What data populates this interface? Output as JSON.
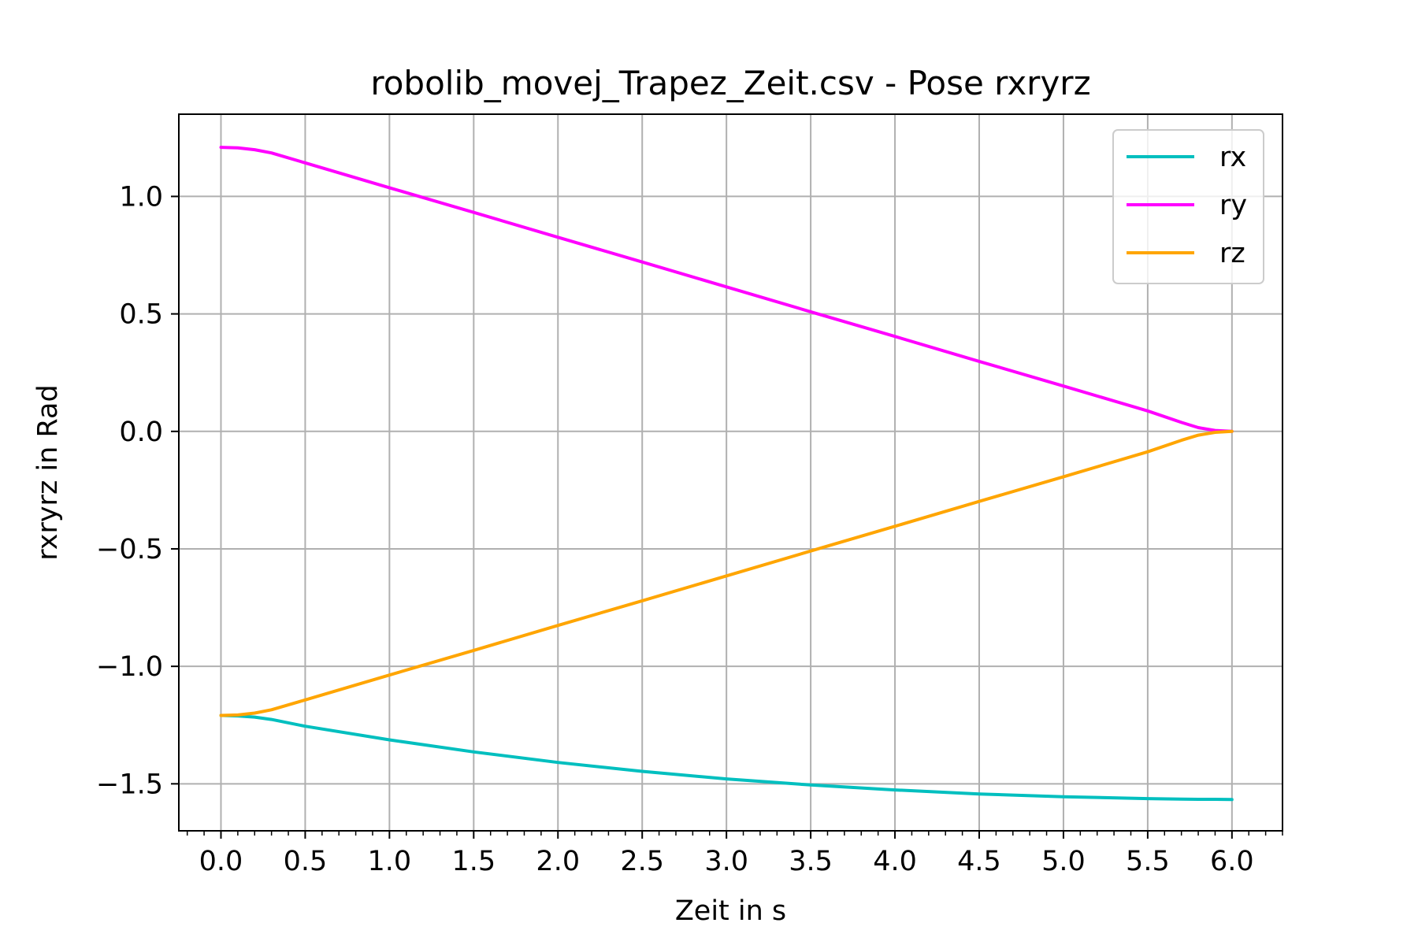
{
  "chart_data": {
    "type": "line",
    "title": "robolib_movej_Trapez_Zeit.csv - Pose rxryrz",
    "xlabel": "Zeit in s",
    "ylabel": "rxryrz in Rad",
    "xlim": [
      -0.25,
      6.3
    ],
    "ylim": [
      -1.7,
      1.35
    ],
    "xticks": [
      0.0,
      0.5,
      1.0,
      1.5,
      2.0,
      2.5,
      3.0,
      3.5,
      4.0,
      4.5,
      5.0,
      5.5,
      6.0
    ],
    "xtick_labels": [
      "0.0",
      "0.5",
      "1.0",
      "1.5",
      "2.0",
      "2.5",
      "3.0",
      "3.5",
      "4.0",
      "4.5",
      "5.0",
      "5.5",
      "6.0"
    ],
    "yticks": [
      -1.5,
      -1.0,
      -0.5,
      0.0,
      0.5,
      1.0
    ],
    "ytick_labels": [
      "−1.5",
      "−1.0",
      "−0.5",
      "0.0",
      "0.5",
      "1.0"
    ],
    "grid": true,
    "legend_position": "top-right",
    "x": [
      0.0,
      0.1,
      0.2,
      0.3,
      0.5,
      1.0,
      1.5,
      2.0,
      2.5,
      3.0,
      3.5,
      4.0,
      4.5,
      5.0,
      5.5,
      5.7,
      5.8,
      5.9,
      6.0
    ],
    "series": [
      {
        "name": "rx",
        "color": "#00bfbf",
        "values": [
          -1.209,
          -1.211,
          -1.216,
          -1.226,
          -1.255,
          -1.313,
          -1.364,
          -1.409,
          -1.447,
          -1.479,
          -1.505,
          -1.526,
          -1.543,
          -1.555,
          -1.563,
          -1.565,
          -1.566,
          -1.566,
          -1.567
        ]
      },
      {
        "name": "ry",
        "color": "#ff00ff",
        "values": [
          1.209,
          1.207,
          1.199,
          1.185,
          1.143,
          1.037,
          0.932,
          0.826,
          0.721,
          0.615,
          0.509,
          0.404,
          0.298,
          0.193,
          0.087,
          0.038,
          0.016,
          0.004,
          0.0
        ]
      },
      {
        "name": "rz",
        "color": "#ffa500",
        "values": [
          -1.209,
          -1.207,
          -1.199,
          -1.185,
          -1.143,
          -1.037,
          -0.932,
          -0.826,
          -0.721,
          -0.615,
          -0.509,
          -0.404,
          -0.298,
          -0.193,
          -0.087,
          -0.038,
          -0.016,
          -0.004,
          0.0
        ]
      }
    ]
  }
}
